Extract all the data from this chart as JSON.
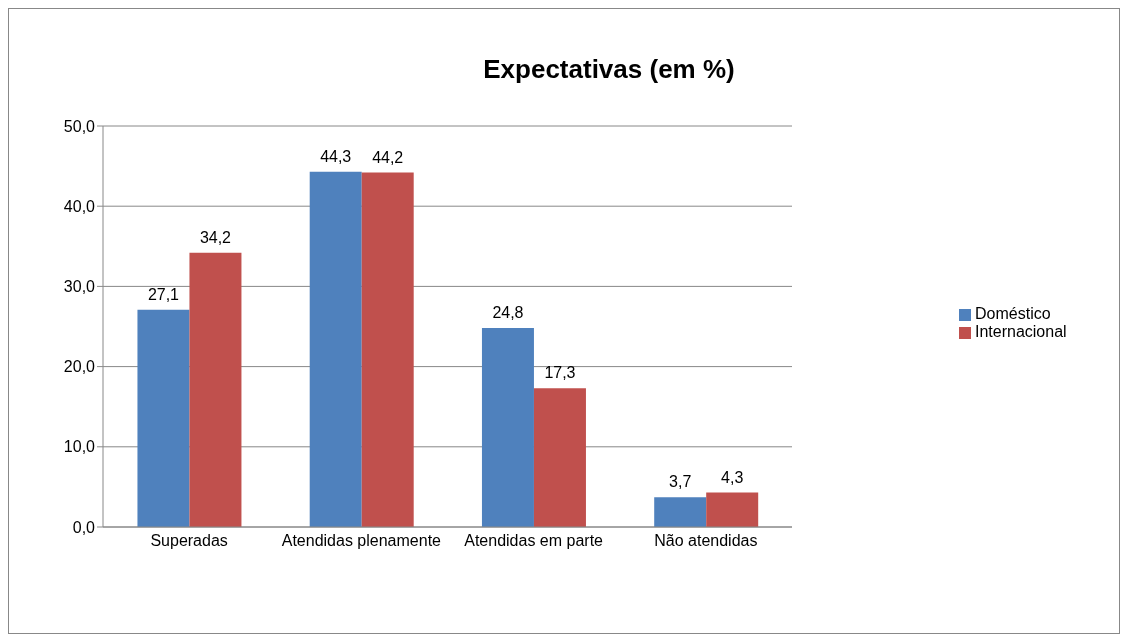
{
  "chart_data": {
    "type": "bar",
    "title": "Expectativas (em %)",
    "categories": [
      "Superadas",
      "Atendidas plenamente",
      "Atendidas em parte",
      "Não atendidas"
    ],
    "series": [
      {
        "name": "Doméstico",
        "color": "#4f81bd",
        "values": [
          27.1,
          44.3,
          24.8,
          3.7
        ],
        "value_labels": [
          "27,1",
          "44,3",
          "24,8",
          "3,7"
        ]
      },
      {
        "name": "Internacional",
        "color": "#c0504d",
        "values": [
          34.2,
          44.2,
          17.3,
          4.3
        ],
        "value_labels": [
          "34,2",
          "44,2",
          "17,3",
          "4,3"
        ]
      }
    ],
    "ylim": [
      0,
      50
    ],
    "yticks": [
      {
        "value": 0,
        "label": "0,0"
      },
      {
        "value": 10,
        "label": "10,0"
      },
      {
        "value": 20,
        "label": "20,0"
      },
      {
        "value": 30,
        "label": "30,0"
      },
      {
        "value": 40,
        "label": "40,0"
      },
      {
        "value": 50,
        "label": "50,0"
      }
    ],
    "grid": "y",
    "legend": "right"
  }
}
